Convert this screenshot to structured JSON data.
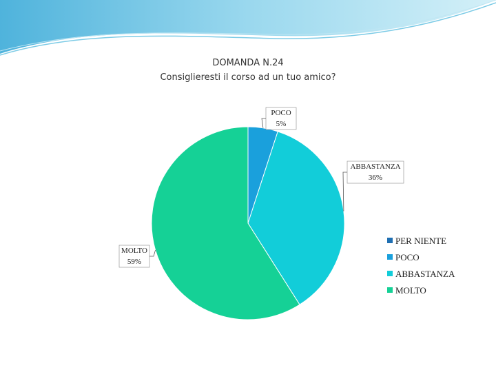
{
  "chart_data": {
    "type": "pie",
    "title": "DOMANDA N.24",
    "subtitle": "Consiglieresti il corso ad un tuo amico?",
    "categories": [
      "PER NIENTE",
      "POCO",
      "ABBASTANZA",
      "MOLTO"
    ],
    "values": [
      0,
      5,
      36,
      59
    ],
    "value_labels": [
      null,
      "5%",
      "36%",
      "59%"
    ],
    "colors": [
      "#1f6fb2",
      "#1aa0dc",
      "#12cdd9",
      "#15d196"
    ],
    "legend": "right"
  }
}
